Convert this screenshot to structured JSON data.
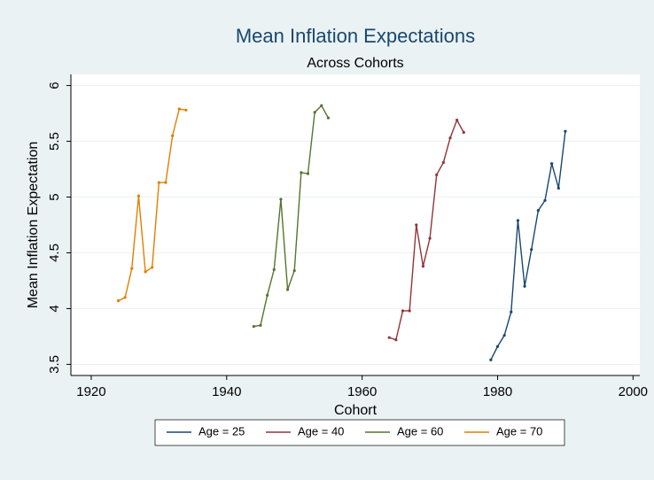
{
  "chart_data": {
    "type": "line",
    "title": "Mean Inflation Expectations",
    "subtitle": "Across Cohorts",
    "x_label": "Cohort",
    "y_label": "Mean Inflation Expectation",
    "xlim": [
      1917,
      2001
    ],
    "xticks": [
      1920,
      1940,
      1960,
      1980,
      2000
    ],
    "ylim": [
      3.4,
      6.1
    ],
    "yticks": [
      3.5,
      4,
      4.5,
      5,
      5.5,
      6
    ],
    "grid": true,
    "legend": "bottom",
    "series": [
      {
        "name": "Age = 25",
        "color": "#1a476f",
        "x": [
          1979,
          1980,
          1981,
          1982,
          1983,
          1984,
          1985,
          1986,
          1987,
          1988,
          1989,
          1990
        ],
        "values": [
          3.54,
          3.66,
          3.76,
          3.97,
          4.79,
          4.2,
          4.53,
          4.88,
          4.97,
          5.3,
          5.08,
          5.59
        ]
      },
      {
        "name": "Age = 40",
        "color": "#90353b",
        "x": [
          1964,
          1965,
          1966,
          1967,
          1968,
          1969,
          1970,
          1971,
          1972,
          1973,
          1974,
          1975
        ],
        "values": [
          3.74,
          3.72,
          3.98,
          3.98,
          4.75,
          4.38,
          4.63,
          5.2,
          5.31,
          5.53,
          5.69,
          5.58
        ]
      },
      {
        "name": "Age = 60",
        "color": "#55752f",
        "x": [
          1944,
          1945,
          1946,
          1947,
          1948,
          1949,
          1950,
          1951,
          1952,
          1953,
          1954,
          1955
        ],
        "values": [
          3.84,
          3.85,
          4.12,
          4.35,
          4.98,
          4.17,
          4.34,
          5.22,
          5.21,
          5.76,
          5.82,
          5.71
        ]
      },
      {
        "name": "Age = 70",
        "color": "#e37e00",
        "x": [
          1924,
          1925,
          1926,
          1927,
          1928,
          1929,
          1930,
          1931,
          1932,
          1933,
          1934
        ],
        "values": [
          4.07,
          4.1,
          4.36,
          5.01,
          4.33,
          4.37,
          5.13,
          5.13,
          5.55,
          5.79,
          5.78
        ]
      }
    ]
  }
}
